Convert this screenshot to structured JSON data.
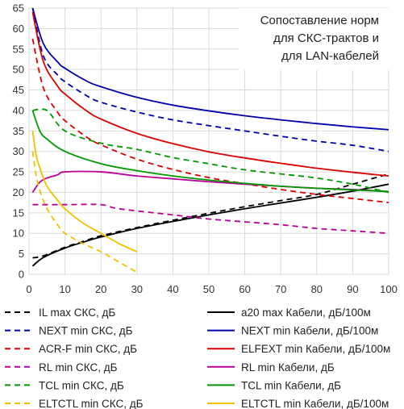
{
  "chart_data": {
    "type": "line",
    "title_lines": [
      "Сопоставление норм",
      "для СКС-трактов и",
      "для LAN-кабелей"
    ],
    "xlim": [
      0,
      100
    ],
    "ylim": [
      0,
      65
    ],
    "x_ticks": [
      0,
      10,
      20,
      30,
      40,
      50,
      60,
      70,
      80,
      90,
      100
    ],
    "y_ticks": [
      0,
      5,
      10,
      15,
      20,
      25,
      30,
      35,
      40,
      45,
      50,
      55,
      60,
      65
    ],
    "grid": true,
    "legend_placement": "bottom",
    "series": [
      {
        "name": "IL max СКС, дБ",
        "color": "#000000",
        "dash": "dashed",
        "points": [
          [
            1,
            4
          ],
          [
            4,
            4.5
          ],
          [
            10,
            6.6
          ],
          [
            16,
            8.3
          ],
          [
            20,
            9.4
          ],
          [
            30,
            11.4
          ],
          [
            40,
            13.2
          ],
          [
            50,
            14.9
          ],
          [
            60,
            16.5
          ],
          [
            70,
            18
          ],
          [
            80,
            19.5
          ],
          [
            90,
            22
          ],
          [
            100,
            24.5
          ]
        ]
      },
      {
        "name": "a20 max Кабели, дБ/100м",
        "color": "#000000",
        "dash": "solid",
        "points": [
          [
            1,
            2
          ],
          [
            4,
            4.1
          ],
          [
            10,
            6.4
          ],
          [
            16,
            8.1
          ],
          [
            20,
            9.1
          ],
          [
            30,
            11.2
          ],
          [
            40,
            12.9
          ],
          [
            50,
            14.5
          ],
          [
            60,
            16
          ],
          [
            70,
            17.4
          ],
          [
            80,
            18.8
          ],
          [
            90,
            20.3
          ],
          [
            100,
            22
          ]
        ]
      },
      {
        "name": "NEXT min СКС, дБ",
        "color": "#0000aa",
        "dash": "dashed",
        "points": [
          [
            1,
            65
          ],
          [
            4,
            53.3
          ],
          [
            8,
            48.6
          ],
          [
            10,
            47
          ],
          [
            16,
            43.6
          ],
          [
            20,
            42
          ],
          [
            30,
            39.6
          ],
          [
            40,
            37.7
          ],
          [
            50,
            36.3
          ],
          [
            60,
            35
          ],
          [
            70,
            33.7
          ],
          [
            80,
            32.5
          ],
          [
            90,
            31.5
          ],
          [
            100,
            30
          ]
        ]
      },
      {
        "name": "NEXT min Кабели, дБ/100м",
        "color": "#0000aa",
        "dash": "solid",
        "points": [
          [
            1,
            65
          ],
          [
            4,
            56.3
          ],
          [
            8,
            51.8
          ],
          [
            10,
            50.3
          ],
          [
            16,
            47.2
          ],
          [
            20,
            45.8
          ],
          [
            30,
            43.2
          ],
          [
            40,
            41.3
          ],
          [
            50,
            39.9
          ],
          [
            60,
            38.7
          ],
          [
            70,
            37.7
          ],
          [
            80,
            36.8
          ],
          [
            90,
            36
          ],
          [
            100,
            35.3
          ]
        ]
      },
      {
        "name": "ACR-F min СКС, дБ",
        "color": "#dd0000",
        "dash": "dashed",
        "points": [
          [
            1,
            57.5
          ],
          [
            4,
            45.5
          ],
          [
            8,
            39.5
          ],
          [
            10,
            37.5
          ],
          [
            16,
            33.5
          ],
          [
            20,
            31.6
          ],
          [
            30,
            28.1
          ],
          [
            40,
            25.6
          ],
          [
            50,
            23.6
          ],
          [
            60,
            22.1
          ],
          [
            70,
            20.7
          ],
          [
            80,
            19.5
          ],
          [
            90,
            18.5
          ],
          [
            100,
            17.5
          ]
        ]
      },
      {
        "name": "ELFEXT min Кабели, дБ/100м",
        "color": "#dd0000",
        "dash": "solid",
        "points": [
          [
            1,
            64
          ],
          [
            4,
            51.9
          ],
          [
            8,
            45.9
          ],
          [
            10,
            44
          ],
          [
            16,
            39.9
          ],
          [
            20,
            37.9
          ],
          [
            30,
            34.4
          ],
          [
            40,
            31.9
          ],
          [
            50,
            29.9
          ],
          [
            60,
            28.4
          ],
          [
            70,
            27.1
          ],
          [
            80,
            25.9
          ],
          [
            90,
            24.9
          ],
          [
            100,
            24
          ]
        ]
      },
      {
        "name": "RL min СКС, дБ",
        "color": "#bb0099",
        "dash": "dashed",
        "points": [
          [
            1,
            17
          ],
          [
            10,
            17
          ],
          [
            20,
            17
          ],
          [
            25,
            16
          ],
          [
            40,
            14.5
          ],
          [
            50,
            13.5
          ],
          [
            60,
            12.8
          ],
          [
            70,
            12.1
          ],
          [
            80,
            11.2
          ],
          [
            90,
            10.6
          ],
          [
            100,
            10
          ]
        ]
      },
      {
        "name": "RL min Кабели, дБ",
        "color": "#bb0099",
        "dash": "solid",
        "points": [
          [
            1,
            20
          ],
          [
            3,
            22.5
          ],
          [
            5,
            23.5
          ],
          [
            8,
            24.3
          ],
          [
            10,
            25
          ],
          [
            20,
            25
          ],
          [
            30,
            24
          ],
          [
            40,
            23.3
          ],
          [
            50,
            22.6
          ],
          [
            60,
            22
          ],
          [
            70,
            21.5
          ],
          [
            80,
            21
          ],
          [
            90,
            20.7
          ],
          [
            100,
            20.2
          ]
        ]
      },
      {
        "name": "TCL min СКС, дБ",
        "color": "#009900",
        "dash": "dashed",
        "points": [
          [
            1,
            40
          ],
          [
            5,
            40
          ],
          [
            10,
            35
          ],
          [
            20,
            32
          ],
          [
            30,
            30.5
          ],
          [
            40,
            28.5
          ],
          [
            50,
            27
          ],
          [
            60,
            25.5
          ],
          [
            70,
            24.5
          ],
          [
            80,
            23.5
          ],
          [
            90,
            22
          ],
          [
            100,
            20
          ]
        ]
      },
      {
        "name": "TCL min Кабели, дБ",
        "color": "#009900",
        "dash": "solid",
        "points": [
          [
            1,
            40
          ],
          [
            3,
            35
          ],
          [
            5,
            33
          ],
          [
            10,
            30
          ],
          [
            20,
            27
          ],
          [
            30,
            25.3
          ],
          [
            40,
            24
          ],
          [
            50,
            23
          ],
          [
            60,
            22.2
          ],
          [
            70,
            21.5
          ],
          [
            80,
            21
          ],
          [
            90,
            20.6
          ],
          [
            100,
            20.2
          ]
        ]
      },
      {
        "name": "ELTCTL min СКС, дБ",
        "color": "#f2c200",
        "dash": "dashed",
        "points": [
          [
            1,
            30
          ],
          [
            2,
            24
          ],
          [
            3,
            20.5
          ],
          [
            5,
            16
          ],
          [
            8,
            12
          ],
          [
            10,
            10
          ],
          [
            15,
            7.5
          ],
          [
            20,
            5.5
          ],
          [
            25,
            3
          ],
          [
            30,
            0.5
          ]
        ]
      },
      {
        "name": "ELTCTL min Кабели, дБ/100м",
        "color": "#f2c200",
        "dash": "solid",
        "points": [
          [
            1,
            35
          ],
          [
            2,
            29
          ],
          [
            3,
            26
          ],
          [
            5,
            21.5
          ],
          [
            8,
            18
          ],
          [
            10,
            16
          ],
          [
            15,
            12.5
          ],
          [
            20,
            10
          ],
          [
            25,
            7.5
          ],
          [
            30,
            5.5
          ]
        ]
      }
    ]
  }
}
